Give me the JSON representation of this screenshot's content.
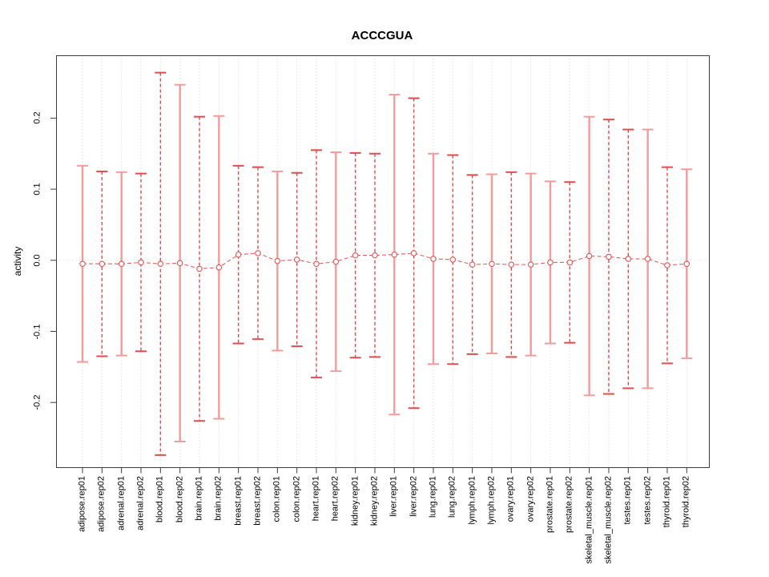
{
  "chart_data": {
    "type": "errorbar",
    "title": "ACCCGUA",
    "ylabel": "activity",
    "xlabel": "",
    "legend": "none",
    "grid": "dotted vertical gridline at every category; dotted horizontal line at y=0",
    "categories": [
      "adipose.rep01",
      "adipose.rep02",
      "adrenal.rep01",
      "adrenal.rep02",
      "blood.rep01",
      "blood.rep02",
      "brain.rep01",
      "brain.rep02",
      "breast.rep01",
      "breast.rep02",
      "colon.rep01",
      "colon.rep02",
      "heart.rep01",
      "heart.rep02",
      "kidney.rep01",
      "kidney.rep02",
      "liver.rep01",
      "liver.rep02",
      "lung.rep01",
      "lung.rep02",
      "lymph.rep01",
      "lymph.rep02",
      "ovary.rep01",
      "ovary.rep02",
      "prostate.rep01",
      "prostate.rep02",
      "skeletal_muscle.rep01",
      "skeletal_muscle.rep02",
      "testes.rep01",
      "testes.rep02",
      "thyroid.rep01",
      "thyroid.rep02"
    ],
    "series": [
      {
        "name": "mean",
        "values": [
          -0.005,
          -0.005,
          -0.005,
          -0.003,
          -0.005,
          -0.004,
          -0.012,
          -0.01,
          0.008,
          0.01,
          -0.001,
          0.001,
          -0.005,
          -0.002,
          0.007,
          0.007,
          0.008,
          0.01,
          0.002,
          0.001,
          -0.006,
          -0.005,
          -0.006,
          -0.006,
          -0.003,
          -0.003,
          0.006,
          0.005,
          0.002,
          0.002,
          -0.007,
          -0.005
        ]
      },
      {
        "name": "upper_bound",
        "values": [
          0.133,
          0.125,
          0.124,
          0.122,
          0.264,
          0.247,
          0.202,
          0.203,
          0.133,
          0.131,
          0.125,
          0.123,
          0.155,
          0.152,
          0.151,
          0.15,
          0.233,
          0.228,
          0.15,
          0.148,
          0.12,
          0.121,
          0.124,
          0.122,
          0.111,
          0.11,
          0.202,
          0.198,
          0.184,
          0.184,
          0.131,
          0.128
        ]
      },
      {
        "name": "lower_bound",
        "values": [
          -0.143,
          -0.135,
          -0.134,
          -0.128,
          -0.274,
          -0.255,
          -0.226,
          -0.223,
          -0.117,
          -0.111,
          -0.127,
          -0.121,
          -0.165,
          -0.156,
          -0.137,
          -0.136,
          -0.217,
          -0.208,
          -0.146,
          -0.146,
          -0.132,
          -0.131,
          -0.136,
          -0.134,
          -0.117,
          -0.116,
          -0.19,
          -0.188,
          -0.18,
          -0.18,
          -0.145,
          -0.138
        ]
      }
    ],
    "line_styles": [
      "solid",
      "dashed",
      "solid",
      "dashed",
      "dashed",
      "solid",
      "dashed",
      "solid",
      "dashed",
      "dashed",
      "solid",
      "dashed",
      "dashed",
      "solid",
      "dashed",
      "dashed",
      "solid",
      "dashed",
      "solid",
      "dashed",
      "dashed",
      "solid",
      "dashed",
      "solid",
      "solid",
      "dashed",
      "solid",
      "dashed",
      "dashed",
      "solid",
      "dashed",
      "solid"
    ],
    "y_ticks": [
      "0.2",
      "0.1",
      "0.0",
      "-0.1",
      "-0.2"
    ],
    "y_tick_values": [
      0.2,
      0.1,
      0.0,
      -0.1,
      -0.2
    ],
    "ylim": [
      -0.291,
      0.287
    ]
  },
  "colors": {
    "bar_solid": "#f39b9b",
    "bar_dashed": "#e04b4b",
    "point_stroke": "#e25555",
    "connector": "#e66060",
    "grid": "#d4d4d4",
    "zero_line": "#dcdcdc",
    "frame": "#3c3c3c",
    "title_text": "#000000"
  }
}
